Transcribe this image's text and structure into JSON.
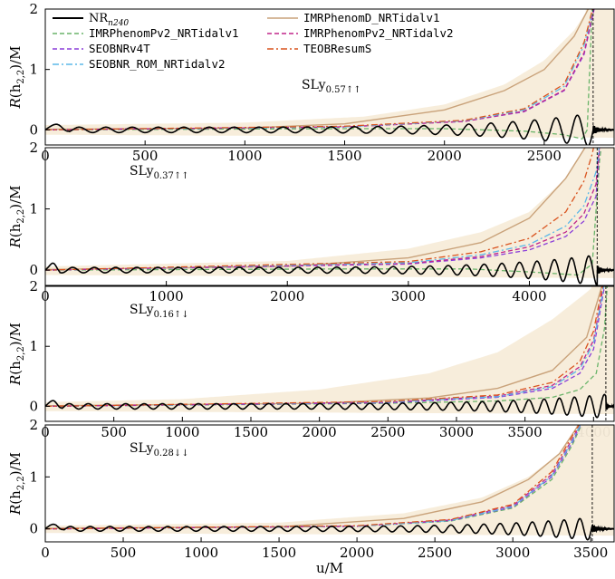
{
  "chart_data": {
    "type": "line",
    "xlabel": "u/M",
    "ylabel": "R(h_{2,2})/M",
    "ylabel_parts": {
      "R": "R",
      "open": "(h",
      "sub": "2,2",
      "close": ")/M"
    },
    "legend": {
      "placement": "top (first panel)",
      "entries": [
        {
          "key": "nr",
          "label": "NR",
          "subscript": "n240",
          "color": "#000000",
          "dash": "solid"
        },
        {
          "key": "pv2v1",
          "label": "IMRPhenomPv2_NRTidalv1",
          "color": "#6ab46a",
          "dash": "dashed"
        },
        {
          "key": "seobnrv4t",
          "label": "SEOBNRv4T",
          "color": "#8b3fd9",
          "dash": "dashed"
        },
        {
          "key": "seobnrrom",
          "label": "SEOBNR_ROM_NRTidalv2",
          "color": "#5bb8e8",
          "dash": "dashdot"
        },
        {
          "key": "phenomd",
          "label": "IMRPhenomD_NRTidalv1",
          "color": "#c9a27a",
          "dash": "solid"
        },
        {
          "key": "pv2v2",
          "label": "IMRPhenomPv2_NRTidalv2",
          "color": "#c0268a",
          "dash": "dashed"
        },
        {
          "key": "teob",
          "label": "TEOBResumS",
          "color": "#d9531e",
          "dash": "dashdot"
        }
      ]
    },
    "colors": {
      "band": "#f7ecd9",
      "nr": "#000000",
      "merger_line": "#000000"
    },
    "panels": [
      {
        "label": "SLy",
        "label_sub": "0.57↑↑",
        "label_position": "center-right",
        "xlim": [
          0,
          2850
        ],
        "ylim": [
          -0.25,
          2
        ],
        "xticks": [
          500,
          1000,
          1500,
          2000,
          2500
        ],
        "yticks": [
          0,
          1,
          2
        ],
        "merger_u": 2745,
        "nr": {
          "cycles": 20,
          "peak_amp": 0.28
        },
        "band_upper": [
          [
            0,
            0.08
          ],
          [
            1000,
            0.12
          ],
          [
            1600,
            0.22
          ],
          [
            2000,
            0.42
          ],
          [
            2300,
            0.75
          ],
          [
            2500,
            1.15
          ],
          [
            2650,
            1.65
          ],
          [
            2720,
            2.0
          ]
        ],
        "models": {
          "phenomd": [
            [
              0,
              0.01
            ],
            [
              1000,
              0.03
            ],
            [
              1500,
              0.1
            ],
            [
              2000,
              0.33
            ],
            [
              2300,
              0.65
            ],
            [
              2500,
              1.0
            ],
            [
              2650,
              1.55
            ],
            [
              2720,
              2.0
            ]
          ],
          "pv2v1": [
            [
              0,
              0.0
            ],
            [
              1500,
              0.02
            ],
            [
              2000,
              0.02
            ],
            [
              2400,
              -0.02
            ],
            [
              2600,
              -0.08
            ],
            [
              2690,
              -0.15
            ],
            [
              2715,
              0.0
            ],
            [
              2740,
              2.0
            ]
          ],
          "seobnrv4t": [
            [
              0,
              0.0
            ],
            [
              1500,
              0.05
            ],
            [
              2100,
              0.14
            ],
            [
              2400,
              0.3
            ],
            [
              2600,
              0.65
            ],
            [
              2700,
              1.25
            ],
            [
              2750,
              2.0
            ]
          ],
          "seobnrrom": [
            [
              0,
              0.0
            ],
            [
              1500,
              0.05
            ],
            [
              2100,
              0.15
            ],
            [
              2400,
              0.33
            ],
            [
              2600,
              0.72
            ],
            [
              2700,
              1.4
            ],
            [
              2745,
              2.0
            ]
          ],
          "pv2v2": [
            [
              0,
              0.0
            ],
            [
              1500,
              0.05
            ],
            [
              2100,
              0.14
            ],
            [
              2400,
              0.31
            ],
            [
              2600,
              0.66
            ],
            [
              2700,
              1.28
            ],
            [
              2748,
              2.0
            ]
          ],
          "teob": [
            [
              0,
              0.0
            ],
            [
              1500,
              0.06
            ],
            [
              2100,
              0.16
            ],
            [
              2400,
              0.35
            ],
            [
              2600,
              0.76
            ],
            [
              2700,
              1.45
            ],
            [
              2742,
              2.0
            ]
          ]
        }
      },
      {
        "label": "SLy",
        "label_sub": "0.37↑↑",
        "label_position": "top-left",
        "xlim": [
          0,
          4700
        ],
        "ylim": [
          -0.25,
          2
        ],
        "xticks": [
          1000,
          2000,
          3000,
          4000
        ],
        "yticks": [
          0,
          1,
          2
        ],
        "merger_u": 4560,
        "nr": {
          "cycles": 25,
          "peak_amp": 0.25
        },
        "band_upper": [
          [
            0,
            0.06
          ],
          [
            2000,
            0.15
          ],
          [
            3000,
            0.35
          ],
          [
            3600,
            0.62
          ],
          [
            4000,
            0.95
          ],
          [
            4300,
            1.5
          ],
          [
            4450,
            2.0
          ]
        ],
        "models": {
          "phenomd": [
            [
              0,
              0.01
            ],
            [
              2000,
              0.06
            ],
            [
              3000,
              0.2
            ],
            [
              3600,
              0.45
            ],
            [
              4000,
              0.85
            ],
            [
              4300,
              1.5
            ],
            [
              4460,
              2.0
            ]
          ],
          "pv2v1": [
            [
              0,
              0.0
            ],
            [
              2500,
              0.02
            ],
            [
              3500,
              0.02
            ],
            [
              4000,
              -0.03
            ],
            [
              4400,
              -0.08
            ],
            [
              4520,
              0.1
            ],
            [
              4580,
              1.8
            ],
            [
              4590,
              1.95
            ]
          ],
          "seobnrv4t": [
            [
              0,
              0.0
            ],
            [
              3000,
              0.1
            ],
            [
              3600,
              0.2
            ],
            [
              4000,
              0.33
            ],
            [
              4300,
              0.55
            ],
            [
              4450,
              0.8
            ],
            [
              4550,
              1.2
            ],
            [
              4580,
              2.0
            ]
          ],
          "seobnrrom": [
            [
              0,
              0.0
            ],
            [
              3000,
              0.12
            ],
            [
              3600,
              0.25
            ],
            [
              4000,
              0.42
            ],
            [
              4300,
              0.72
            ],
            [
              4450,
              1.05
            ],
            [
              4550,
              1.6
            ],
            [
              4575,
              2.0
            ]
          ],
          "pv2v2": [
            [
              0,
              0.0
            ],
            [
              3000,
              0.11
            ],
            [
              3600,
              0.22
            ],
            [
              4000,
              0.38
            ],
            [
              4300,
              0.62
            ],
            [
              4450,
              0.92
            ],
            [
              4550,
              1.4
            ],
            [
              4578,
              2.0
            ]
          ],
          "teob": [
            [
              0,
              0.0
            ],
            [
              3000,
              0.14
            ],
            [
              3600,
              0.3
            ],
            [
              4000,
              0.52
            ],
            [
              4300,
              0.95
            ],
            [
              4450,
              1.45
            ],
            [
              4520,
              1.9
            ],
            [
              4530,
              2.0
            ]
          ]
        }
      },
      {
        "label": "SLy",
        "label_sub": "0.16↑↓",
        "label_position": "top-left",
        "xlim": [
          0,
          4150
        ],
        "ylim": [
          -0.25,
          2
        ],
        "xticks": [
          500,
          1000,
          1500,
          2000,
          2500,
          3000,
          3500,
          4000
        ],
        "yticks": [
          0,
          1,
          2
        ],
        "merger_u": 4090,
        "nr": {
          "cycles": 29,
          "peak_amp": 0.2
        },
        "band_upper": [
          [
            0,
            0.07
          ],
          [
            1000,
            0.12
          ],
          [
            2000,
            0.28
          ],
          [
            2800,
            0.55
          ],
          [
            3300,
            0.9
          ],
          [
            3700,
            1.45
          ],
          [
            3950,
            1.9
          ],
          [
            4000,
            2.0
          ]
        ],
        "models": {
          "phenomd": [
            [
              0,
              0.01
            ],
            [
              2000,
              0.05
            ],
            [
              2800,
              0.14
            ],
            [
              3300,
              0.3
            ],
            [
              3700,
              0.6
            ],
            [
              3950,
              1.15
            ],
            [
              4060,
              2.0
            ]
          ],
          "pv2v1": [
            [
              0,
              0.0
            ],
            [
              2500,
              0.05
            ],
            [
              3300,
              0.09
            ],
            [
              3700,
              0.15
            ],
            [
              3900,
              0.28
            ],
            [
              4020,
              0.55
            ],
            [
              4080,
              1.3
            ],
            [
              4100,
              2.0
            ]
          ],
          "seobnrv4t": [
            [
              0,
              0.0
            ],
            [
              2500,
              0.06
            ],
            [
              3300,
              0.15
            ],
            [
              3700,
              0.3
            ],
            [
              3900,
              0.55
            ],
            [
              4000,
              0.95
            ],
            [
              4080,
              2.0
            ]
          ],
          "seobnrrom": [
            [
              0,
              0.0
            ],
            [
              2500,
              0.07
            ],
            [
              3300,
              0.16
            ],
            [
              3700,
              0.33
            ],
            [
              3900,
              0.62
            ],
            [
              4000,
              1.05
            ],
            [
              4075,
              2.0
            ]
          ],
          "pv2v2": [
            [
              0,
              0.0
            ],
            [
              2500,
              0.07
            ],
            [
              3300,
              0.17
            ],
            [
              3700,
              0.35
            ],
            [
              3900,
              0.66
            ],
            [
              4000,
              1.1
            ],
            [
              4072,
              2.0
            ]
          ],
          "teob": [
            [
              0,
              0.0
            ],
            [
              2500,
              0.08
            ],
            [
              3300,
              0.19
            ],
            [
              3700,
              0.4
            ],
            [
              3900,
              0.75
            ],
            [
              4000,
              1.25
            ],
            [
              4065,
              2.0
            ]
          ]
        }
      },
      {
        "label": "SLy",
        "label_sub": "0.28↓↓",
        "label_position": "top-left",
        "xlim": [
          0,
          3650
        ],
        "ylim": [
          -0.25,
          2
        ],
        "xticks": [
          500,
          1000,
          1500,
          2000,
          2500,
          3000,
          3500
        ],
        "yticks": [
          0,
          1,
          2
        ],
        "merger_u": 3510,
        "nr": {
          "cycles": 27,
          "peak_amp": 0.22
        },
        "band_upper": [
          [
            0,
            0.06
          ],
          [
            1500,
            0.12
          ],
          [
            2300,
            0.3
          ],
          [
            2800,
            0.6
          ],
          [
            3100,
            1.0
          ],
          [
            3300,
            1.45
          ],
          [
            3400,
            1.85
          ],
          [
            3430,
            2.0
          ]
        ],
        "models": {
          "phenomd": [
            [
              0,
              0.01
            ],
            [
              1500,
              0.04
            ],
            [
              2300,
              0.2
            ],
            [
              2800,
              0.52
            ],
            [
              3100,
              0.95
            ],
            [
              3300,
              1.45
            ],
            [
              3400,
              1.9
            ],
            [
              3420,
              2.0
            ]
          ],
          "pv2v1": [
            [
              0,
              0.0
            ],
            [
              2000,
              0.05
            ],
            [
              2600,
              0.15
            ],
            [
              3000,
              0.4
            ],
            [
              3250,
              0.95
            ],
            [
              3380,
              1.6
            ],
            [
              3440,
              2.0
            ]
          ],
          "seobnrv4t": [
            [
              0,
              0.0
            ],
            [
              2000,
              0.05
            ],
            [
              2600,
              0.16
            ],
            [
              3000,
              0.42
            ],
            [
              3250,
              1.0
            ],
            [
              3380,
              1.65
            ],
            [
              3435,
              2.0
            ]
          ],
          "seobnrrom": [
            [
              0,
              0.0
            ],
            [
              2000,
              0.05
            ],
            [
              2600,
              0.16
            ],
            [
              3000,
              0.43
            ],
            [
              3250,
              1.02
            ],
            [
              3380,
              1.68
            ],
            [
              3432,
              2.0
            ]
          ],
          "pv2v2": [
            [
              0,
              0.0
            ],
            [
              2000,
              0.05
            ],
            [
              2600,
              0.17
            ],
            [
              3000,
              0.45
            ],
            [
              3250,
              1.05
            ],
            [
              3380,
              1.72
            ],
            [
              3430,
              2.0
            ]
          ],
          "teob": [
            [
              0,
              0.0
            ],
            [
              2000,
              0.06
            ],
            [
              2600,
              0.18
            ],
            [
              3000,
              0.47
            ],
            [
              3250,
              1.1
            ],
            [
              3380,
              1.78
            ],
            [
              3425,
              2.0
            ]
          ]
        }
      }
    ]
  }
}
